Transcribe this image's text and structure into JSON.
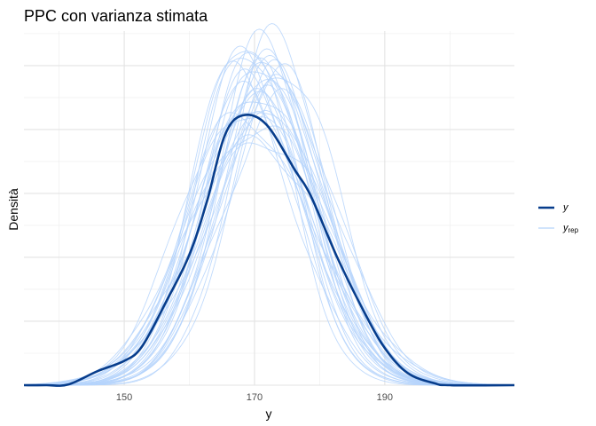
{
  "chart_data": {
    "type": "line",
    "title": "PPC con varianza stimata",
    "xlabel": "y",
    "ylabel": "Densità",
    "xlim": [
      134.6,
      209.9
    ],
    "ylim": [
      0,
      0.0554
    ],
    "x_ticks": [
      150,
      170,
      190
    ],
    "x_minor_ticks": [
      140,
      160,
      180,
      200
    ],
    "y_gridlines": [
      0,
      0.01,
      0.02,
      0.03,
      0.04,
      0.05
    ],
    "y_minor_gridlines": [
      0.005,
      0.015,
      0.025,
      0.035,
      0.045,
      0.055
    ],
    "show_y_tick_labels": false,
    "grid": true,
    "legend_position": "right",
    "legend": [
      {
        "label": "y",
        "subscript": "",
        "color": "#073d8c"
      },
      {
        "label": "y",
        "subscript": "rep",
        "color": "#b5d4fb"
      }
    ],
    "series_y": {
      "name": "y",
      "color": "#073d8c",
      "x": [
        134.6,
        138,
        141.4,
        145.9,
        150,
        152.7,
        156.4,
        160,
        162.7,
        165.4,
        168.1,
        171.8,
        176.3,
        178.6,
        182.7,
        186.7,
        190,
        193.5,
        197.6,
        200,
        209.9
      ],
      "values": [
        0,
        0,
        0.0001,
        0.0022,
        0.0038,
        0.006,
        0.013,
        0.0204,
        0.0288,
        0.039,
        0.0422,
        0.0408,
        0.0335,
        0.0297,
        0.02,
        0.0117,
        0.0058,
        0.0019,
        0.0003,
        0,
        0
      ]
    },
    "series_yrep": {
      "name": "yrep",
      "color": "#b5d4fb",
      "curves": [
        {
          "mean": 169.0,
          "sd": 7.4
        },
        {
          "mean": 171.5,
          "sd": 8.2
        },
        {
          "mean": 170.2,
          "sd": 8.8
        },
        {
          "mean": 172.8,
          "sd": 7.9
        },
        {
          "mean": 168.4,
          "sd": 9.3
        },
        {
          "mean": 173.6,
          "sd": 7.3
        },
        {
          "mean": 170.8,
          "sd": 8.5
        },
        {
          "mean": 169.7,
          "sd": 9.8
        },
        {
          "mean": 171.0,
          "sd": 7.7
        },
        {
          "mean": 172.2,
          "sd": 9.0
        },
        {
          "mean": 167.9,
          "sd": 8.1
        },
        {
          "mean": 174.2,
          "sd": 8.6
        },
        {
          "mean": 170.5,
          "sd": 7.5
        },
        {
          "mean": 169.3,
          "sd": 8.9
        },
        {
          "mean": 171.9,
          "sd": 10.2
        },
        {
          "mean": 173.0,
          "sd": 8.3
        },
        {
          "mean": 168.8,
          "sd": 7.8
        },
        {
          "mean": 170.0,
          "sd": 9.5
        },
        {
          "mean": 172.5,
          "sd": 7.6
        },
        {
          "mean": 171.3,
          "sd": 8.0
        },
        {
          "mean": 169.5,
          "sd": 8.4
        },
        {
          "mean": 173.9,
          "sd": 9.1
        },
        {
          "mean": 170.9,
          "sd": 10.5
        },
        {
          "mean": 168.2,
          "sd": 7.2
        },
        {
          "mean": 172.0,
          "sd": 8.7
        },
        {
          "mean": 170.3,
          "sd": 8.2
        },
        {
          "mean": 174.8,
          "sd": 7.9
        },
        {
          "mean": 169.1,
          "sd": 9.0
        },
        {
          "mean": 171.7,
          "sd": 7.4
        },
        {
          "mean": 170.6,
          "sd": 9.6
        },
        {
          "mean": 167.5,
          "sd": 8.8
        },
        {
          "mean": 173.3,
          "sd": 8.1
        }
      ]
    }
  }
}
